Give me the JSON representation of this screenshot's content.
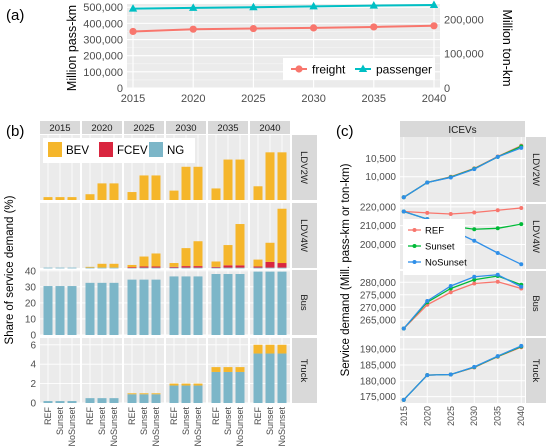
{
  "chart_data": [
    {
      "panel": "(a)",
      "type": "line",
      "x": [
        2015,
        2020,
        2025,
        2030,
        2035,
        2040
      ],
      "xlim": [
        2014.5,
        2040.5
      ],
      "ylabel_left": "Million pass-km",
      "ylabel_right": "Million ton-km",
      "yticks_left": [
        "0",
        "100,000",
        "200,000",
        "300,000",
        "400,000",
        "500,000"
      ],
      "yticks_right": [
        "0",
        "100,000",
        "200,000"
      ],
      "ylim_left": [
        0,
        520000
      ],
      "right_axis_scale": 0.47,
      "grid": true,
      "legend_position": "bottom-right",
      "series": [
        {
          "name": "freight",
          "color": "#f8766d",
          "marker": "circle",
          "values": [
            350000,
            364000,
            368000,
            372000,
            378000,
            385000
          ]
        },
        {
          "name": "passenger",
          "color": "#00bfc4",
          "marker": "triangle",
          "values": [
            491000,
            496000,
            500000,
            505000,
            510000,
            514000
          ]
        }
      ]
    },
    {
      "panel": "(b)",
      "type": "bar",
      "stacked": true,
      "ylabel": "Share of service demand (%)",
      "columns": [
        "2015",
        "2020",
        "2025",
        "2030",
        "2035",
        "2040"
      ],
      "rows": [
        {
          "label": "LDV2W",
          "ylim": [
            0,
            0.9
          ],
          "yticks": []
        },
        {
          "label": "LDV4W",
          "ylim": [
            0,
            17.0
          ],
          "yticks": []
        },
        {
          "label": "Bus",
          "ylim": [
            0,
            40.5
          ],
          "yticks": [
            "0",
            "10",
            "20",
            "30",
            "40"
          ]
        },
        {
          "label": "Truck",
          "ylim": [
            0,
            6.7
          ],
          "yticks": [
            "0",
            "2",
            "4",
            "6"
          ]
        }
      ],
      "categories": [
        "REF",
        "Sunset",
        "NoSunset"
      ],
      "legend": [
        {
          "name": "BEV",
          "color": "#f5b62b"
        },
        {
          "name": "FCEV",
          "color": "#d9263f"
        },
        {
          "name": "NG",
          "color": "#7cb6c8"
        }
      ],
      "values": {
        "LDV2W": {
          "2015": {
            "REF": {
              "NG": 0,
              "FCEV": 0,
              "BEV": 0.04
            },
            "Sunset": {
              "NG": 0,
              "FCEV": 0,
              "BEV": 0.04
            },
            "NoSunset": {
              "NG": 0,
              "FCEV": 0,
              "BEV": 0.04
            }
          },
          "2020": {
            "REF": {
              "NG": 0,
              "FCEV": 0,
              "BEV": 0.08
            },
            "Sunset": {
              "NG": 0,
              "FCEV": 0,
              "BEV": 0.23
            },
            "NoSunset": {
              "NG": 0,
              "FCEV": 0,
              "BEV": 0.23
            }
          },
          "2025": {
            "REF": {
              "NG": 0,
              "FCEV": 0,
              "BEV": 0.11
            },
            "Sunset": {
              "NG": 0,
              "FCEV": 0,
              "BEV": 0.34
            },
            "NoSunset": {
              "NG": 0,
              "FCEV": 0,
              "BEV": 0.34
            }
          },
          "2030": {
            "REF": {
              "NG": 0,
              "FCEV": 0,
              "BEV": 0.13
            },
            "Sunset": {
              "NG": 0,
              "FCEV": 0,
              "BEV": 0.46
            },
            "NoSunset": {
              "NG": 0,
              "FCEV": 0,
              "BEV": 0.46
            }
          },
          "2035": {
            "REF": {
              "NG": 0,
              "FCEV": 0,
              "BEV": 0.16
            },
            "Sunset": {
              "NG": 0,
              "FCEV": 0,
              "BEV": 0.56
            },
            "NoSunset": {
              "NG": 0,
              "FCEV": 0,
              "BEV": 0.56
            }
          },
          "2040": {
            "REF": {
              "NG": 0,
              "FCEV": 0,
              "BEV": 0.19
            },
            "Sunset": {
              "NG": 0,
              "FCEV": 0,
              "BEV": 0.66
            },
            "NoSunset": {
              "NG": 0,
              "FCEV": 0,
              "BEV": 0.66
            }
          }
        },
        "LDV4W": {
          "2015": {
            "REF": {
              "NG": 0.1,
              "FCEV": 0,
              "BEV": 0
            },
            "Sunset": {
              "NG": 0.1,
              "FCEV": 0,
              "BEV": 0
            },
            "NoSunset": {
              "NG": 0.1,
              "FCEV": 0,
              "BEV": 0
            }
          },
          "2020": {
            "REF": {
              "NG": 0.1,
              "FCEV": 0,
              "BEV": 0.2
            },
            "Sunset": {
              "NG": 0.1,
              "FCEV": 0,
              "BEV": 1.0
            },
            "NoSunset": {
              "NG": 0.1,
              "FCEV": 0,
              "BEV": 1.0
            }
          },
          "2025": {
            "REF": {
              "NG": 0.1,
              "FCEV": 0.1,
              "BEV": 0.6
            },
            "Sunset": {
              "NG": 0.1,
              "FCEV": 0.3,
              "BEV": 2.6
            },
            "NoSunset": {
              "NG": 0.1,
              "FCEV": 0.3,
              "BEV": 3.4
            }
          },
          "2030": {
            "REF": {
              "NG": 0.1,
              "FCEV": 0.2,
              "BEV": 1.0
            },
            "Sunset": {
              "NG": 0.1,
              "FCEV": 0.4,
              "BEV": 4.7
            },
            "NoSunset": {
              "NG": 0.1,
              "FCEV": 0.4,
              "BEV": 6.5
            }
          },
          "2035": {
            "REF": {
              "NG": 0.1,
              "FCEV": 0.2,
              "BEV": 1.4
            },
            "Sunset": {
              "NG": 0.1,
              "FCEV": 0.6,
              "BEV": 5.3
            },
            "NoSunset": {
              "NG": 0.1,
              "FCEV": 0.6,
              "BEV": 10.8
            }
          },
          "2040": {
            "REF": {
              "NG": 0.1,
              "FCEV": 0.3,
              "BEV": 1.8
            },
            "Sunset": {
              "NG": 0.1,
              "FCEV": 1.5,
              "BEV": 5.0
            },
            "NoSunset": {
              "NG": 0.1,
              "FCEV": 1.2,
              "BEV": 14.2
            }
          }
        },
        "Bus": {
          "2015": {
            "REF": {
              "NG": 30.5,
              "FCEV": 0,
              "BEV": 0
            },
            "Sunset": {
              "NG": 30.5,
              "FCEV": 0,
              "BEV": 0
            },
            "NoSunset": {
              "NG": 30.5,
              "FCEV": 0,
              "BEV": 0
            }
          },
          "2020": {
            "REF": {
              "NG": 32.5,
              "FCEV": 0,
              "BEV": 0
            },
            "Sunset": {
              "NG": 32.5,
              "FCEV": 0,
              "BEV": 0
            },
            "NoSunset": {
              "NG": 32.5,
              "FCEV": 0,
              "BEV": 0
            }
          },
          "2025": {
            "REF": {
              "NG": 34.5,
              "FCEV": 0,
              "BEV": 0
            },
            "Sunset": {
              "NG": 34.5,
              "FCEV": 0,
              "BEV": 0
            },
            "NoSunset": {
              "NG": 34.5,
              "FCEV": 0,
              "BEV": 0
            }
          },
          "2030": {
            "REF": {
              "NG": 36.5,
              "FCEV": 0,
              "BEV": 0
            },
            "Sunset": {
              "NG": 36.5,
              "FCEV": 0,
              "BEV": 0
            },
            "NoSunset": {
              "NG": 36.5,
              "FCEV": 0,
              "BEV": 0
            }
          },
          "2035": {
            "REF": {
              "NG": 38.0,
              "FCEV": 0,
              "BEV": 0
            },
            "Sunset": {
              "NG": 38.0,
              "FCEV": 0,
              "BEV": 0
            },
            "NoSunset": {
              "NG": 38.0,
              "FCEV": 0,
              "BEV": 0
            }
          },
          "2040": {
            "REF": {
              "NG": 39.5,
              "FCEV": 0,
              "BEV": 0
            },
            "Sunset": {
              "NG": 39.5,
              "FCEV": 0,
              "BEV": 0
            },
            "NoSunset": {
              "NG": 39.5,
              "FCEV": 0,
              "BEV": 0
            }
          }
        },
        "Truck": {
          "2015": {
            "REF": {
              "NG": 0.2,
              "FCEV": 0,
              "BEV": 0
            },
            "Sunset": {
              "NG": 0.2,
              "FCEV": 0,
              "BEV": 0
            },
            "NoSunset": {
              "NG": 0.2,
              "FCEV": 0,
              "BEV": 0
            }
          },
          "2020": {
            "REF": {
              "NG": 0.5,
              "FCEV": 0,
              "BEV": 0
            },
            "Sunset": {
              "NG": 0.5,
              "FCEV": 0,
              "BEV": 0
            },
            "NoSunset": {
              "NG": 0.5,
              "FCEV": 0,
              "BEV": 0
            }
          },
          "2025": {
            "REF": {
              "NG": 0.9,
              "FCEV": 0,
              "BEV": 0.1
            },
            "Sunset": {
              "NG": 0.9,
              "FCEV": 0,
              "BEV": 0.1
            },
            "NoSunset": {
              "NG": 0.9,
              "FCEV": 0,
              "BEV": 0.1
            }
          },
          "2030": {
            "REF": {
              "NG": 1.8,
              "FCEV": 0,
              "BEV": 0.2
            },
            "Sunset": {
              "NG": 1.8,
              "FCEV": 0,
              "BEV": 0.2
            },
            "NoSunset": {
              "NG": 1.8,
              "FCEV": 0,
              "BEV": 0.2
            }
          },
          "2035": {
            "REF": {
              "NG": 3.2,
              "FCEV": 0,
              "BEV": 0.5
            },
            "Sunset": {
              "NG": 3.2,
              "FCEV": 0,
              "BEV": 0.5
            },
            "NoSunset": {
              "NG": 3.2,
              "FCEV": 0,
              "BEV": 0.5
            }
          },
          "2040": {
            "REF": {
              "NG": 5.1,
              "FCEV": 0,
              "BEV": 0.9
            },
            "Sunset": {
              "NG": 5.1,
              "FCEV": 0,
              "BEV": 0.9
            },
            "NoSunset": {
              "NG": 5.1,
              "FCEV": 0,
              "BEV": 0.9
            }
          }
        }
      }
    },
    {
      "panel": "(c)",
      "type": "line",
      "title": "ICEVs",
      "ylabel": "Service demand (Mill. pass-km or ton-km)",
      "x": [
        2015,
        2020,
        2025,
        2030,
        2035,
        2040
      ],
      "xtick_labels": [
        "2015",
        "2020",
        "2025",
        "2030",
        "2035",
        "2040"
      ],
      "xlim": [
        2014.2,
        2040.8
      ],
      "legend": [
        {
          "name": "REF",
          "color": "#f8766d"
        },
        {
          "name": "Sunset",
          "color": "#00ba38"
        },
        {
          "name": "NoSunset",
          "color": "#2f8fe8"
        }
      ],
      "legend_position": "inside LDV4W facet, left",
      "rows": [
        {
          "label": "LDV2W",
          "ylim": [
            9300,
            11100
          ],
          "yticks": [
            10000,
            10500
          ],
          "yticklabels": [
            "10,000",
            "10,500"
          ],
          "series": [
            {
              "name": "REF",
              "values": [
                9430,
                9840,
                10000,
                10230,
                10560,
                10860
              ]
            },
            {
              "name": "Sunset",
              "values": [
                9430,
                9840,
                9990,
                10220,
                10550,
                10840
              ]
            },
            {
              "name": "NoSunset",
              "values": [
                9430,
                9840,
                9980,
                10210,
                10550,
                10800
              ]
            }
          ]
        },
        {
          "label": "LDV4W",
          "ylim": [
            187000,
            221500
          ],
          "yticks": [
            200000,
            210000,
            220000
          ],
          "yticklabels": [
            "200,000",
            "210,000",
            "220,000"
          ],
          "series": [
            {
              "name": "REF",
              "values": [
                217500,
                216800,
                216200,
                217000,
                218200,
                219400
              ]
            },
            {
              "name": "Sunset",
              "values": [
                217500,
                213500,
                209800,
                208100,
                208600,
                210800
              ]
            },
            {
              "name": "NoSunset",
              "values": [
                217500,
                213500,
                207800,
                202000,
                195500,
                189500
              ]
            }
          ]
        },
        {
          "label": "Bus",
          "ylim": [
            258500,
            284500
          ],
          "yticks": [
            265000,
            270000,
            275000,
            280000
          ],
          "yticklabels": [
            "265,000",
            "270,000",
            "275,000",
            "280,000"
          ],
          "series": [
            {
              "name": "REF",
              "values": [
                261500,
                271000,
                276000,
                279500,
                280200,
                277500
              ]
            },
            {
              "name": "Sunset",
              "values": [
                261500,
                272000,
                277500,
                281000,
                282500,
                279000
              ]
            },
            {
              "name": "NoSunset",
              "values": [
                261500,
                272500,
                278500,
                282200,
                283000,
                278200
              ]
            }
          ]
        },
        {
          "label": "Truck",
          "ylim": [
            173000,
            193500
          ],
          "yticks": [
            175000,
            180000,
            185000,
            190000
          ],
          "yticklabels": [
            "175,000",
            "180,000",
            "185,000",
            "190,000"
          ],
          "series": [
            {
              "name": "REF",
              "values": [
                174000,
                181800,
                182000,
                184200,
                187600,
                190600
              ]
            },
            {
              "name": "Sunset",
              "values": [
                174000,
                181800,
                182000,
                184300,
                187700,
                190800
              ]
            },
            {
              "name": "NoSunset",
              "values": [
                174000,
                181800,
                182000,
                184400,
                187800,
                191000
              ]
            }
          ]
        }
      ]
    }
  ]
}
